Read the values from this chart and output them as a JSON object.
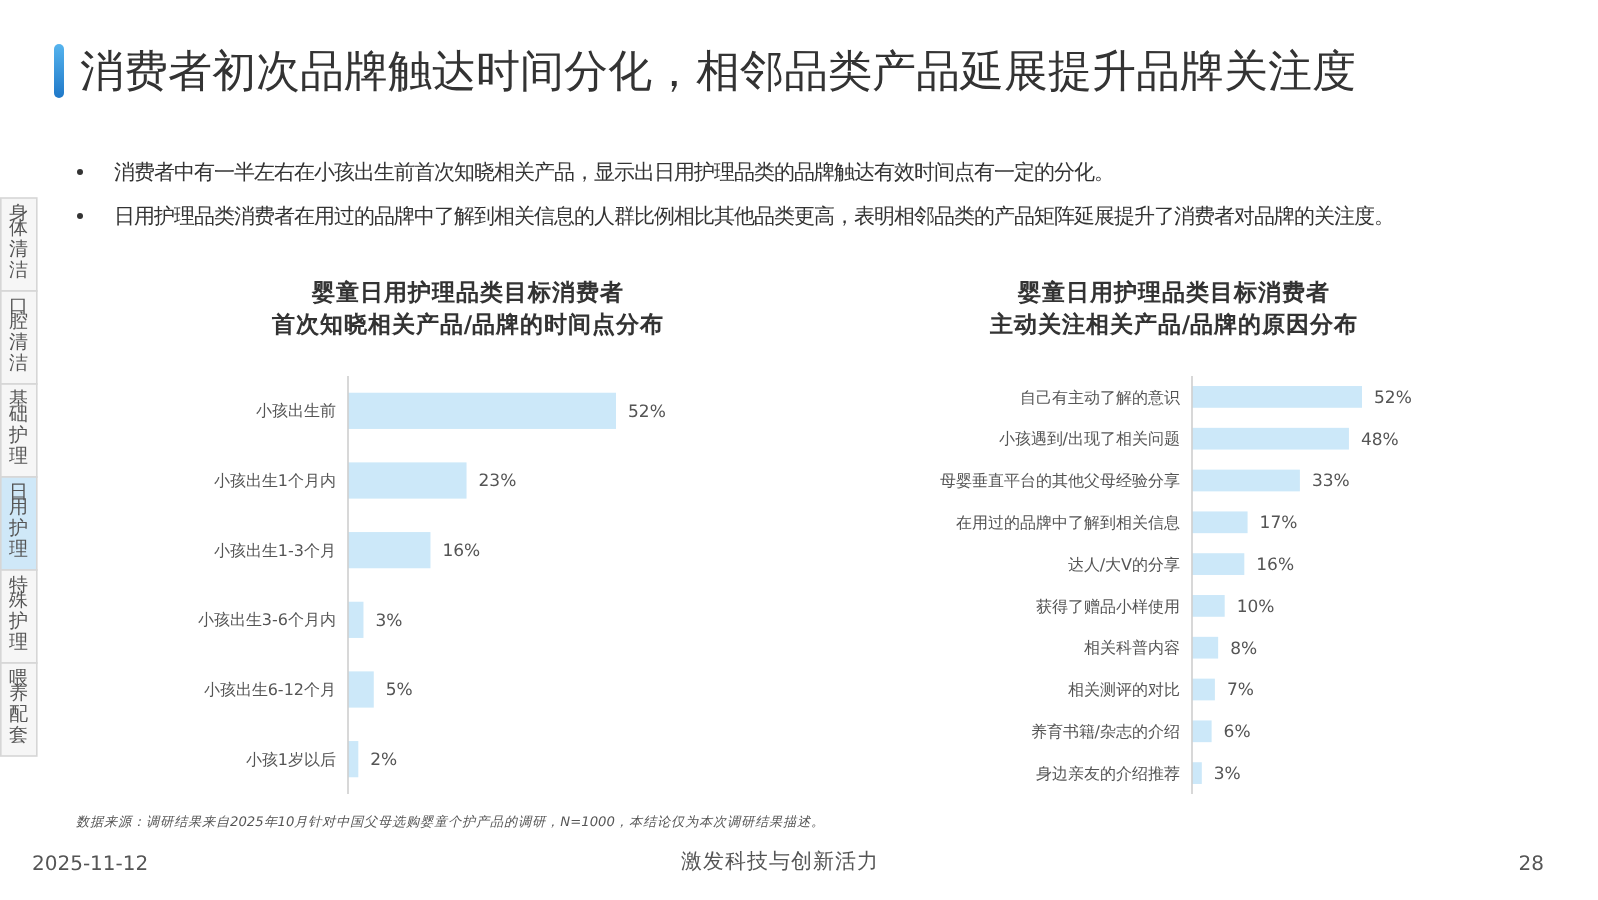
{
  "chart_data": [
    {
      "type": "other",
      "title": "消费者初次品牌触达时间分化，相邻品类产品延展提升品牌关注度",
      "categories": [
        "身体清洁",
        "口腔清洁",
        "基础护理",
        "日用护理",
        "特殊护理",
        "喂养配套"
      ],
      "colors": [
        "#f6f6f6",
        "#f6f6f6",
        "#f6f6f6",
        "#cfe8f8",
        "#f6f6f6",
        "#f6f6f6"
      ],
      "annotations": [
        "消费者中有一半左右在小孩出生前首次知晓相关产品，显示出日用护理品类的品牌触达有效时间点有一定的分化。",
        "日用护理品类消费者在用过的品牌中了解到相关信息的人群比例相比其他品类更高，表明相邻品类的产品矩阵延展提升了消费者对品牌的关注度。",
        "数据来源：调研结果来自2025年10月针对中国父母选购婴童个护产品的调研，N=1000，本结论仅为本次调研结果描述。",
        "2025-11-12",
        "激发科技与创新活力",
        "28"
      ]
    },
    {
      "type": "bar",
      "orientation": "horizontal",
      "title": "婴童日用护理品类目标消费者首次知晓相关产品/品牌的时间点分布",
      "categories": [
        "小孩出生前",
        "小孩出生1个月内",
        "小孩出生1-3个月",
        "小孩出生3-6个月内",
        "小孩出生6-12个月",
        "小孩1岁以后"
      ],
      "values": [
        52,
        23,
        16,
        3,
        5,
        2
      ],
      "value_labels": [
        "52%",
        "23%",
        "16%",
        "3%",
        "5%",
        "2%"
      ],
      "color": "#cce8f9"
    },
    {
      "type": "bar",
      "orientation": "horizontal",
      "title": "婴童日用护理品类目标消费者主动关注相关产品/品牌的原因分布",
      "categories": [
        "自己有主动了解的意识",
        "小孩遇到/出现了相关问题",
        "母婴垂直平台的其他父母经验分享",
        "在用过的品牌中了解到相关信息",
        "达人/大V的分享",
        "获得了赠品小样使用",
        "相关科普内容",
        "相关测评的对比",
        "养育书籍/杂志的介绍",
        "身边亲友的介绍推荐"
      ],
      "values": [
        52,
        48,
        33,
        17,
        16,
        10,
        8,
        7,
        6,
        3
      ],
      "value_labels": [
        "52%",
        "48%",
        "33%",
        "17%",
        "16%",
        "10%",
        "8%",
        "7%",
        "6%",
        "3%"
      ],
      "color": "#cce8f9"
    }
  ]
}
